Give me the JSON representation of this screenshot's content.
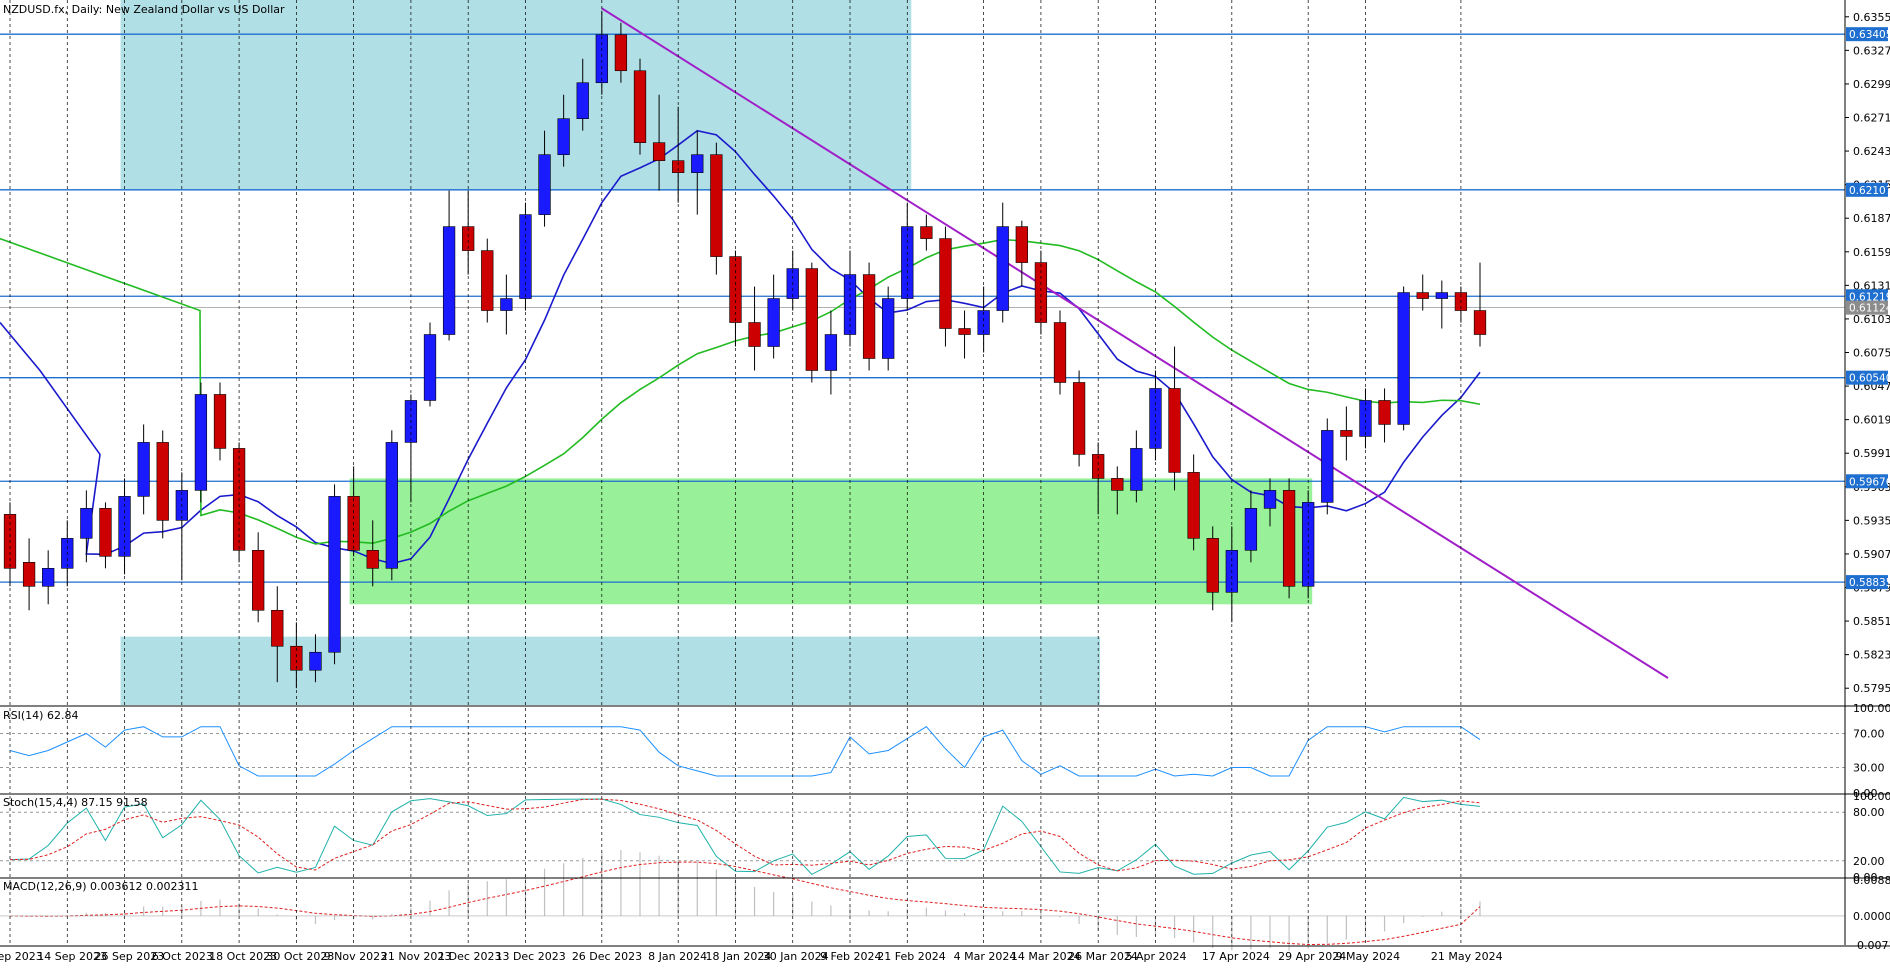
{
  "main_panel": {
    "title": "NZDUSD.fx, Daily:  New Zealand Dollar vs US Dollar",
    "price_ticks": [
      "0.63550",
      "0.63270",
      "0.62990",
      "0.62710",
      "0.62430",
      "0.62150",
      "0.61870",
      "0.61590",
      "0.61310",
      "0.61030",
      "0.60750",
      "0.60470",
      "0.60190",
      "0.59910",
      "0.59630",
      "0.59350",
      "0.59070",
      "0.58790",
      "0.58510",
      "0.58230",
      "0.57950"
    ],
    "level_tags": [
      "0.63405",
      "0.62107",
      "0.61219",
      "0.58835",
      "0.60540",
      "0.59676",
      "0.61124"
    ]
  },
  "x_axis": {
    "labels": [
      "4 Sep 2023",
      "14 Sep 2023",
      "26 Sep 2023",
      "6 Oct 2023",
      "18 Oct 2023",
      "30 Oct 2023",
      "9 Nov 2023",
      "21 Nov 2023",
      "1 Dec 2023",
      "13 Dec 2023",
      "26 Dec 2023",
      "8 Jan 2024",
      "18 Jan 2024",
      "30 Jan 2024",
      "9 Feb 2024",
      "21 Feb 2024",
      "4 Mar 2024",
      "14 Mar 2024",
      "26 Mar 2024",
      "5 Apr 2024",
      "17 Apr 2024",
      "29 Apr 2024",
      "9 May 2024",
      "21 May 2024"
    ]
  },
  "rsi_panel": {
    "label": "RSI(14) 62.84",
    "ticks": [
      "100.00",
      "70.00",
      "30.00",
      "0.00"
    ]
  },
  "stoch_panel": {
    "label": "Stoch(15,4,4) 87.15 91.58",
    "ticks": [
      "100.00",
      "80.00",
      "20.00",
      "0.00"
    ]
  },
  "macd_panel": {
    "label": "MACD(12,26,9) 0.003612 0.002311",
    "ticks": [
      "0.008892",
      "0.000000",
      "-0.007181"
    ]
  },
  "colors": {
    "bull_candle": "#1a1aff",
    "bear_candle": "#cc0000",
    "ma_fast": "#1a1acc",
    "ma_slow": "#22bb22",
    "trendline": "#a01fc8",
    "h_level": "#1e6fd0",
    "zone_blue": "#b0dfe5",
    "zone_green": "#98f098",
    "rsi_line": "#1e90ff",
    "stoch_main": "#20b2aa",
    "stoch_signal": "#e02020",
    "macd_hist": "#c0c0c0",
    "macd_signal": "#e02020"
  },
  "chart_data": {
    "type": "candlestick",
    "title": "NZDUSD.fx, Daily:  New Zealand Dollar vs US Dollar",
    "ylim": [
      0.5781,
      0.6369
    ],
    "candles": [
      {
        "date": "4 Sep 2023",
        "o": 0.594,
        "h": 0.595,
        "l": 0.588,
        "c": 0.5895
      },
      {
        "date": "7 Sep 2023",
        "o": 0.59,
        "h": 0.592,
        "l": 0.586,
        "c": 0.588
      },
      {
        "date": "12 Sep 2023",
        "o": 0.588,
        "h": 0.591,
        "l": 0.5865,
        "c": 0.5895
      },
      {
        "date": "14 Sep 2023",
        "o": 0.5895,
        "h": 0.5935,
        "l": 0.588,
        "c": 0.592
      },
      {
        "date": "19 Sep 2023",
        "o": 0.592,
        "h": 0.596,
        "l": 0.59,
        "c": 0.5945
      },
      {
        "date": "21 Sep 2023",
        "o": 0.5945,
        "h": 0.595,
        "l": 0.5895,
        "c": 0.5905
      },
      {
        "date": "26 Sep 2023",
        "o": 0.5905,
        "h": 0.597,
        "l": 0.589,
        "c": 0.5955
      },
      {
        "date": "28 Sep 2023",
        "o": 0.5955,
        "h": 0.6015,
        "l": 0.594,
        "c": 0.6
      },
      {
        "date": "3 Oct 2023",
        "o": 0.6,
        "h": 0.601,
        "l": 0.592,
        "c": 0.5935
      },
      {
        "date": "6 Oct 2023",
        "o": 0.5935,
        "h": 0.5975,
        "l": 0.5885,
        "c": 0.596
      },
      {
        "date": "11 Oct 2023",
        "o": 0.596,
        "h": 0.605,
        "l": 0.595,
        "c": 0.604
      },
      {
        "date": "16 Oct 2023",
        "o": 0.604,
        "h": 0.605,
        "l": 0.5985,
        "c": 0.5995
      },
      {
        "date": "18 Oct 2023",
        "o": 0.5995,
        "h": 0.6,
        "l": 0.59,
        "c": 0.591
      },
      {
        "date": "23 Oct 2023",
        "o": 0.591,
        "h": 0.5925,
        "l": 0.585,
        "c": 0.586
      },
      {
        "date": "26 Oct 2023",
        "o": 0.586,
        "h": 0.588,
        "l": 0.58,
        "c": 0.583
      },
      {
        "date": "30 Oct 2023",
        "o": 0.583,
        "h": 0.585,
        "l": 0.5795,
        "c": 0.581
      },
      {
        "date": "2 Nov 2023",
        "o": 0.581,
        "h": 0.584,
        "l": 0.58,
        "c": 0.5825
      },
      {
        "date": "6 Nov 2023",
        "o": 0.5825,
        "h": 0.5965,
        "l": 0.5815,
        "c": 0.5955
      },
      {
        "date": "9 Nov 2023",
        "o": 0.5955,
        "h": 0.598,
        "l": 0.5905,
        "c": 0.591
      },
      {
        "date": "14 Nov 2023",
        "o": 0.591,
        "h": 0.5935,
        "l": 0.588,
        "c": 0.5895
      },
      {
        "date": "16 Nov 2023",
        "o": 0.5895,
        "h": 0.601,
        "l": 0.5885,
        "c": 0.6
      },
      {
        "date": "21 Nov 2023",
        "o": 0.6,
        "h": 0.604,
        "l": 0.595,
        "c": 0.6035
      },
      {
        "date": "24 Nov 2023",
        "o": 0.6035,
        "h": 0.61,
        "l": 0.603,
        "c": 0.609
      },
      {
        "date": "28 Nov 2023",
        "o": 0.609,
        "h": 0.621,
        "l": 0.6085,
        "c": 0.618
      },
      {
        "date": "1 Dec 2023",
        "o": 0.618,
        "h": 0.621,
        "l": 0.614,
        "c": 0.616
      },
      {
        "date": "6 Dec 2023",
        "o": 0.616,
        "h": 0.617,
        "l": 0.61,
        "c": 0.611
      },
      {
        "date": "8 Dec 2023",
        "o": 0.611,
        "h": 0.614,
        "l": 0.609,
        "c": 0.612
      },
      {
        "date": "13 Dec 2023",
        "o": 0.612,
        "h": 0.62,
        "l": 0.611,
        "c": 0.619
      },
      {
        "date": "15 Dec 2023",
        "o": 0.619,
        "h": 0.626,
        "l": 0.618,
        "c": 0.624
      },
      {
        "date": "20 Dec 2023",
        "o": 0.624,
        "h": 0.629,
        "l": 0.623,
        "c": 0.627
      },
      {
        "date": "22 Dec 2023",
        "o": 0.627,
        "h": 0.632,
        "l": 0.626,
        "c": 0.63
      },
      {
        "date": "26 Dec 2023",
        "o": 0.63,
        "h": 0.636,
        "l": 0.629,
        "c": 0.634
      },
      {
        "date": "29 Dec 2023",
        "o": 0.634,
        "h": 0.635,
        "l": 0.63,
        "c": 0.631
      },
      {
        "date": "3 Jan 2024",
        "o": 0.631,
        "h": 0.632,
        "l": 0.624,
        "c": 0.625
      },
      {
        "date": "5 Jan 2024",
        "o": 0.625,
        "h": 0.629,
        "l": 0.621,
        "c": 0.6235
      },
      {
        "date": "8 Jan 2024",
        "o": 0.6235,
        "h": 0.628,
        "l": 0.62,
        "c": 0.6225
      },
      {
        "date": "11 Jan 2024",
        "o": 0.6225,
        "h": 0.626,
        "l": 0.619,
        "c": 0.624
      },
      {
        "date": "15 Jan 2024",
        "o": 0.624,
        "h": 0.625,
        "l": 0.614,
        "c": 0.6155
      },
      {
        "date": "18 Jan 2024",
        "o": 0.6155,
        "h": 0.616,
        "l": 0.608,
        "c": 0.61
      },
      {
        "date": "23 Jan 2024",
        "o": 0.61,
        "h": 0.613,
        "l": 0.606,
        "c": 0.608
      },
      {
        "date": "25 Jan 2024",
        "o": 0.608,
        "h": 0.614,
        "l": 0.607,
        "c": 0.612
      },
      {
        "date": "30 Jan 2024",
        "o": 0.612,
        "h": 0.616,
        "l": 0.611,
        "c": 0.6145
      },
      {
        "date": "2 Feb 2024",
        "o": 0.6145,
        "h": 0.615,
        "l": 0.605,
        "c": 0.606
      },
      {
        "date": "6 Feb 2024",
        "o": 0.606,
        "h": 0.611,
        "l": 0.604,
        "c": 0.609
      },
      {
        "date": "9 Feb 2024",
        "o": 0.609,
        "h": 0.616,
        "l": 0.608,
        "c": 0.614
      },
      {
        "date": "13 Feb 2024",
        "o": 0.614,
        "h": 0.615,
        "l": 0.606,
        "c": 0.607
      },
      {
        "date": "16 Feb 2024",
        "o": 0.607,
        "h": 0.613,
        "l": 0.606,
        "c": 0.612
      },
      {
        "date": "21 Feb 2024",
        "o": 0.612,
        "h": 0.62,
        "l": 0.611,
        "c": 0.618
      },
      {
        "date": "23 Feb 2024",
        "o": 0.618,
        "h": 0.619,
        "l": 0.616,
        "c": 0.617
      },
      {
        "date": "27 Feb 2024",
        "o": 0.617,
        "h": 0.618,
        "l": 0.608,
        "c": 0.6095
      },
      {
        "date": "1 Mar 2024",
        "o": 0.6095,
        "h": 0.611,
        "l": 0.607,
        "c": 0.609
      },
      {
        "date": "4 Mar 2024",
        "o": 0.609,
        "h": 0.613,
        "l": 0.6075,
        "c": 0.611
      },
      {
        "date": "7 Mar 2024",
        "o": 0.611,
        "h": 0.62,
        "l": 0.61,
        "c": 0.618
      },
      {
        "date": "12 Mar 2024",
        "o": 0.618,
        "h": 0.6185,
        "l": 0.613,
        "c": 0.615
      },
      {
        "date": "14 Mar 2024",
        "o": 0.615,
        "h": 0.616,
        "l": 0.609,
        "c": 0.61
      },
      {
        "date": "19 Mar 2024",
        "o": 0.61,
        "h": 0.611,
        "l": 0.604,
        "c": 0.605
      },
      {
        "date": "21 Mar 2024",
        "o": 0.605,
        "h": 0.606,
        "l": 0.598,
        "c": 0.599
      },
      {
        "date": "26 Mar 2024",
        "o": 0.599,
        "h": 0.6,
        "l": 0.594,
        "c": 0.597
      },
      {
        "date": "28 Mar 2024",
        "o": 0.597,
        "h": 0.598,
        "l": 0.594,
        "c": 0.596
      },
      {
        "date": "2 Apr 2024",
        "o": 0.596,
        "h": 0.601,
        "l": 0.595,
        "c": 0.5995
      },
      {
        "date": "5 Apr 2024",
        "o": 0.5995,
        "h": 0.606,
        "l": 0.5985,
        "c": 0.6045
      },
      {
        "date": "9 Apr 2024",
        "o": 0.6045,
        "h": 0.608,
        "l": 0.596,
        "c": 0.5975
      },
      {
        "date": "12 Apr 2024",
        "o": 0.5975,
        "h": 0.599,
        "l": 0.591,
        "c": 0.592
      },
      {
        "date": "15 Apr 2024",
        "o": 0.592,
        "h": 0.593,
        "l": 0.586,
        "c": 0.5875
      },
      {
        "date": "17 Apr 2024",
        "o": 0.5875,
        "h": 0.593,
        "l": 0.585,
        "c": 0.591
      },
      {
        "date": "22 Apr 2024",
        "o": 0.591,
        "h": 0.596,
        "l": 0.59,
        "c": 0.5945
      },
      {
        "date": "24 Apr 2024",
        "o": 0.5945,
        "h": 0.597,
        "l": 0.593,
        "c": 0.596
      },
      {
        "date": "26 Apr 2024",
        "o": 0.596,
        "h": 0.597,
        "l": 0.587,
        "c": 0.588
      },
      {
        "date": "29 Apr 2024",
        "o": 0.588,
        "h": 0.596,
        "l": 0.587,
        "c": 0.595
      },
      {
        "date": "2 May 2024",
        "o": 0.595,
        "h": 0.602,
        "l": 0.594,
        "c": 0.601
      },
      {
        "date": "7 May 2024",
        "o": 0.601,
        "h": 0.603,
        "l": 0.5985,
        "c": 0.6005
      },
      {
        "date": "9 May 2024",
        "o": 0.6005,
        "h": 0.6045,
        "l": 0.5995,
        "c": 0.6035
      },
      {
        "date": "13 May 2024",
        "o": 0.6035,
        "h": 0.6045,
        "l": 0.6,
        "c": 0.6015
      },
      {
        "date": "15 May 2024",
        "o": 0.6015,
        "h": 0.613,
        "l": 0.601,
        "c": 0.6125
      },
      {
        "date": "17 May 2024",
        "o": 0.6125,
        "h": 0.614,
        "l": 0.611,
        "c": 0.612
      },
      {
        "date": "20 May 2024",
        "o": 0.612,
        "h": 0.6135,
        "l": 0.6095,
        "c": 0.6125
      },
      {
        "date": "21 May 2024",
        "o": 0.6125,
        "h": 0.613,
        "l": 0.61,
        "c": 0.611
      },
      {
        "date": "22 May 2024",
        "o": 0.611,
        "h": 0.615,
        "l": 0.608,
        "c": 0.609
      }
    ],
    "horizontal_levels": [
      0.63405,
      0.62107,
      0.61219,
      0.6054,
      0.59676,
      0.58835
    ],
    "current_price": 0.61124,
    "trendline": {
      "from": [
        "26 Dec 2023",
        0.6362
      ],
      "to": [
        "21 May 2024",
        0.5912
      ]
    },
    "zones": [
      {
        "color": "blue",
        "from": "26 Sep 2023",
        "to": "21 Feb 2024",
        "low": 0.621,
        "high": 0.6369
      },
      {
        "color": "blue",
        "from": "26 Sep 2023",
        "to": "2 Mar 2024",
        "low": 0.5781,
        "high": 0.5838
      },
      {
        "color": "green",
        "from": "9 Nov 2023",
        "to": "29 Apr 2024",
        "low": 0.5865,
        "high": 0.597
      }
    ],
    "rsi": {
      "value": 62.84,
      "levels": [
        70,
        30
      ],
      "ylim": [
        0,
        100
      ]
    },
    "stochastic": {
      "main": 87.15,
      "signal": 91.58,
      "levels": [
        80,
        20
      ],
      "ylim": [
        0,
        100
      ]
    },
    "macd": {
      "main": 0.003612,
      "signal": 0.002311,
      "ylim": [
        -0.007181,
        0.008892
      ]
    }
  }
}
